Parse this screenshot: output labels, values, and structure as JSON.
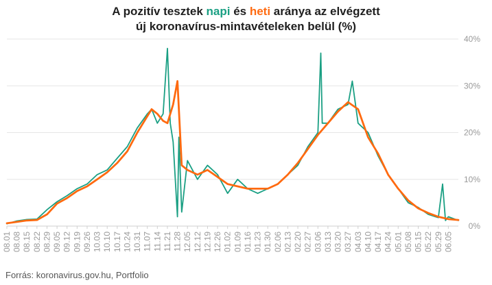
{
  "chart_data": {
    "type": "line",
    "title": {
      "line1": {
        "pre": "A pozitív tesztek ",
        "napi": "napi",
        "mid": " és ",
        "heti": "heti",
        "post": " aránya az elvégzett"
      },
      "line2": "új koronavírus-mintavételeken belül (%)"
    },
    "source": "Forrás: koronavirus.gov.hu, Portfolio",
    "colors": {
      "napi": "#1a9f83",
      "heti": "#ff6a10",
      "grid": "#e6e6e6",
      "tick": "#999999"
    },
    "y_axis": {
      "min": 0,
      "max": 40,
      "position": "right",
      "ticks": [
        {
          "value": 0,
          "label": "0%"
        },
        {
          "value": 10,
          "label": "10%"
        },
        {
          "value": 20,
          "label": "20%"
        },
        {
          "value": 30,
          "label": "30%"
        },
        {
          "value": 40,
          "label": "40%"
        }
      ]
    },
    "x_axis": {
      "first_date": "2020-08-01",
      "last_date": "2021-06-12",
      "tick_labels": [
        "08.01",
        "08.08",
        "08.15",
        "08.22",
        "08.29",
        "09.05",
        "09.12",
        "09.19",
        "09.26",
        "10.03",
        "10.10",
        "10.17",
        "10.24",
        "10.31",
        "11.07",
        "11.14",
        "11.21",
        "11.28",
        "12.05",
        "12.12",
        "12.19",
        "12.26",
        "01.02",
        "01.09",
        "01.16",
        "01.23",
        "01.30",
        "02.06",
        "02.13",
        "02.20",
        "02.27",
        "03.06",
        "03.13",
        "03.20",
        "03.27",
        "04.03",
        "04.10",
        "04.17",
        "04.24",
        "05.01",
        "05.08",
        "05.15",
        "05.22",
        "05.29",
        "06.05"
      ]
    },
    "grid": true,
    "series": [
      {
        "name": "napi",
        "points": [
          [
            "2020-08-01",
            0.5
          ],
          [
            "2020-08-08",
            1.1
          ],
          [
            "2020-08-15",
            1.4
          ],
          [
            "2020-08-22",
            1.5
          ],
          [
            "2020-08-29",
            3.5
          ],
          [
            "2020-09-05",
            5.2
          ],
          [
            "2020-09-12",
            6.5
          ],
          [
            "2020-09-19",
            8
          ],
          [
            "2020-09-26",
            9
          ],
          [
            "2020-10-03",
            11
          ],
          [
            "2020-10-10",
            12
          ],
          [
            "2020-10-17",
            14.5
          ],
          [
            "2020-10-24",
            17
          ],
          [
            "2020-10-31",
            21
          ],
          [
            "2020-11-07",
            24
          ],
          [
            "2020-11-10",
            25
          ],
          [
            "2020-11-14",
            22
          ],
          [
            "2020-11-18",
            24
          ],
          [
            "2020-11-21",
            38
          ],
          [
            "2020-11-23",
            22
          ],
          [
            "2020-11-25",
            18
          ],
          [
            "2020-11-28",
            2
          ],
          [
            "2020-11-29",
            19
          ],
          [
            "2020-12-01",
            3
          ],
          [
            "2020-12-05",
            14
          ],
          [
            "2020-12-12",
            10
          ],
          [
            "2020-12-19",
            13
          ],
          [
            "2020-12-26",
            11
          ],
          [
            "2021-01-02",
            7
          ],
          [
            "2021-01-09",
            10
          ],
          [
            "2021-01-16",
            8
          ],
          [
            "2021-01-23",
            7
          ],
          [
            "2021-01-30",
            8
          ],
          [
            "2021-02-06",
            9
          ],
          [
            "2021-02-13",
            11
          ],
          [
            "2021-02-20",
            13
          ],
          [
            "2021-02-27",
            17
          ],
          [
            "2021-03-06",
            20
          ],
          [
            "2021-03-08",
            37
          ],
          [
            "2021-03-09",
            22
          ],
          [
            "2021-03-13",
            22
          ],
          [
            "2021-03-20",
            25
          ],
          [
            "2021-03-27",
            26
          ],
          [
            "2021-03-30",
            31
          ],
          [
            "2021-04-03",
            22
          ],
          [
            "2021-04-10",
            20
          ],
          [
            "2021-04-17",
            15
          ],
          [
            "2021-04-24",
            11
          ],
          [
            "2021-05-01",
            8
          ],
          [
            "2021-05-08",
            5
          ],
          [
            "2021-05-15",
            4
          ],
          [
            "2021-05-22",
            2.5
          ],
          [
            "2021-05-29",
            1.8
          ],
          [
            "2021-06-01",
            9
          ],
          [
            "2021-06-03",
            1.2
          ],
          [
            "2021-06-05",
            2
          ],
          [
            "2021-06-12",
            1.2
          ]
        ]
      },
      {
        "name": "heti",
        "points": [
          [
            "2020-08-01",
            0.6
          ],
          [
            "2020-08-08",
            0.9
          ],
          [
            "2020-08-15",
            1.2
          ],
          [
            "2020-08-22",
            1.3
          ],
          [
            "2020-08-29",
            2.5
          ],
          [
            "2020-09-05",
            4.8
          ],
          [
            "2020-09-12",
            6
          ],
          [
            "2020-09-19",
            7.5
          ],
          [
            "2020-09-26",
            8.5
          ],
          [
            "2020-10-03",
            10
          ],
          [
            "2020-10-10",
            11.5
          ],
          [
            "2020-10-17",
            13.5
          ],
          [
            "2020-10-24",
            16
          ],
          [
            "2020-10-31",
            20
          ],
          [
            "2020-11-07",
            23.5
          ],
          [
            "2020-11-10",
            25
          ],
          [
            "2020-11-14",
            24
          ],
          [
            "2020-11-18",
            22.5
          ],
          [
            "2020-11-21",
            22
          ],
          [
            "2020-11-25",
            26
          ],
          [
            "2020-11-28",
            31
          ],
          [
            "2020-12-01",
            13
          ],
          [
            "2020-12-05",
            12
          ],
          [
            "2020-12-12",
            11
          ],
          [
            "2020-12-19",
            12
          ],
          [
            "2020-12-26",
            10.5
          ],
          [
            "2021-01-02",
            9
          ],
          [
            "2021-01-09",
            8.5
          ],
          [
            "2021-01-16",
            8
          ],
          [
            "2021-01-23",
            8
          ],
          [
            "2021-01-30",
            8
          ],
          [
            "2021-02-06",
            9
          ],
          [
            "2021-02-13",
            11
          ],
          [
            "2021-02-20",
            13.5
          ],
          [
            "2021-02-27",
            16.5
          ],
          [
            "2021-03-06",
            19.5
          ],
          [
            "2021-03-13",
            22
          ],
          [
            "2021-03-20",
            24.5
          ],
          [
            "2021-03-27",
            26.5
          ],
          [
            "2021-04-03",
            25
          ],
          [
            "2021-04-10",
            19
          ],
          [
            "2021-04-17",
            15.5
          ],
          [
            "2021-04-24",
            11
          ],
          [
            "2021-05-01",
            8
          ],
          [
            "2021-05-08",
            5.5
          ],
          [
            "2021-05-15",
            3.8
          ],
          [
            "2021-05-22",
            2.8
          ],
          [
            "2021-05-29",
            2
          ],
          [
            "2021-06-05",
            1.5
          ],
          [
            "2021-06-12",
            1.3
          ]
        ]
      }
    ]
  }
}
